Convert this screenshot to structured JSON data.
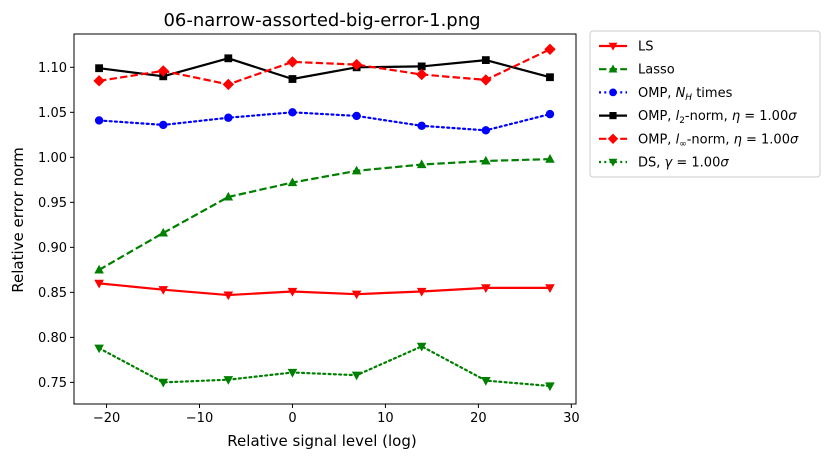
{
  "chart_data": {
    "type": "line",
    "title": "06-narrow-assorted-big-error-1.png",
    "xlabel": "Relative signal level (log)",
    "ylabel": "Relative error norm",
    "xlim": [
      -23.5,
      30.5
    ],
    "ylim": [
      0.726,
      1.137
    ],
    "xticks": [
      -20,
      -10,
      0,
      10,
      20,
      30
    ],
    "xtick_labels": [
      "−20",
      "−10",
      "0",
      "10",
      "20",
      "30"
    ],
    "yticks": [
      0.75,
      0.8,
      0.85,
      0.9,
      0.95,
      1.0,
      1.05,
      1.1
    ],
    "ytick_labels": [
      "0.75",
      "0.80",
      "0.85",
      "0.90",
      "0.95",
      "1.00",
      "1.05",
      "1.10"
    ],
    "grid": false,
    "legend_position": "outside-top-right",
    "x": [
      -20.8,
      -13.9,
      -6.9,
      0.0,
      6.9,
      13.9,
      20.8,
      27.7
    ],
    "series": [
      {
        "name": "LS",
        "values": [
          0.86,
          0.853,
          0.847,
          0.851,
          0.848,
          0.851,
          0.855,
          0.855
        ],
        "color": "#ff0000",
        "linestyle": "solid",
        "marker": "triangle-down"
      },
      {
        "name": "Lasso",
        "values": [
          0.875,
          0.916,
          0.956,
          0.972,
          0.985,
          0.992,
          0.996,
          0.998
        ],
        "color": "#008000",
        "linestyle": "dashed",
        "marker": "triangle-up"
      },
      {
        "name": "OMP, N_H times",
        "values": [
          1.041,
          1.036,
          1.044,
          1.05,
          1.046,
          1.035,
          1.03,
          1.048
        ],
        "color": "#0000ff",
        "linestyle": "dotted",
        "marker": "circle"
      },
      {
        "name": "OMP, l_2-norm, η = 1.00σ",
        "values": [
          1.099,
          1.09,
          1.11,
          1.087,
          1.1,
          1.101,
          1.108,
          1.089
        ],
        "color": "#000000",
        "linestyle": "solid",
        "marker": "square"
      },
      {
        "name": "OMP, l_∞-norm, η = 1.00σ",
        "values": [
          1.085,
          1.096,
          1.081,
          1.106,
          1.103,
          1.092,
          1.086,
          1.12
        ],
        "color": "#ff0000",
        "linestyle": "dashed",
        "marker": "diamond"
      },
      {
        "name": "DS, γ = 1.00σ",
        "values": [
          0.788,
          0.75,
          0.753,
          0.761,
          0.758,
          0.79,
          0.752,
          0.746
        ],
        "color": "#008000",
        "linestyle": "dotted",
        "marker": "triangle-down"
      }
    ],
    "legend": [
      {
        "parts": [
          [
            "LS",
            ""
          ]
        ]
      },
      {
        "parts": [
          [
            "Lasso",
            ""
          ]
        ]
      },
      {
        "parts": [
          [
            "OMP, ",
            ""
          ],
          [
            "N",
            "i"
          ],
          [
            "H",
            "sub-i"
          ],
          [
            " times",
            ""
          ]
        ]
      },
      {
        "parts": [
          [
            "OMP, ",
            ""
          ],
          [
            "l",
            "i"
          ],
          [
            "2",
            "sub"
          ],
          [
            "-norm, ",
            ""
          ],
          [
            "η",
            "i"
          ],
          [
            " = 1.00",
            ""
          ],
          [
            "σ",
            "i"
          ]
        ]
      },
      {
        "parts": [
          [
            "OMP, ",
            ""
          ],
          [
            "l",
            "i"
          ],
          [
            "∞",
            "sub"
          ],
          [
            "-norm, ",
            ""
          ],
          [
            "η",
            "i"
          ],
          [
            " = 1.00",
            ""
          ],
          [
            "σ",
            "i"
          ]
        ]
      },
      {
        "parts": [
          [
            "DS, ",
            ""
          ],
          [
            "γ",
            "i"
          ],
          [
            " = 1.00",
            ""
          ],
          [
            "σ",
            "i"
          ]
        ]
      }
    ]
  }
}
